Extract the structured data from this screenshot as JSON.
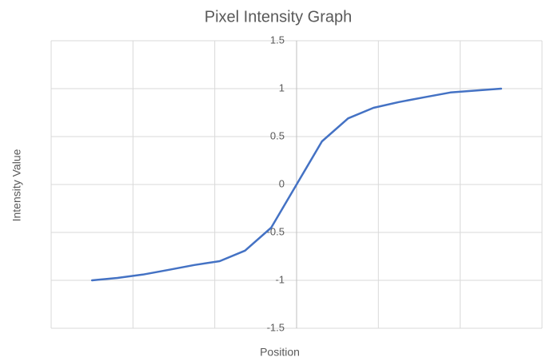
{
  "chart_data": {
    "type": "line",
    "title": "Pixel Intensity Graph",
    "x_label": "Position",
    "y_label": "Intensity Value",
    "x": [
      -2.5,
      -2.19,
      -1.88,
      -1.56,
      -1.25,
      -0.94,
      -0.63,
      -0.31,
      0,
      0.31,
      0.63,
      0.94,
      1.25,
      1.56,
      1.88,
      2.19,
      2.5
    ],
    "series": [
      {
        "name": "Intensity",
        "color": "#4472c4",
        "values": [
          -1,
          -0.975,
          -0.94,
          -0.89,
          -0.84,
          -0.8,
          -0.69,
          -0.45,
          0,
          0.45,
          0.69,
          0.8,
          0.86,
          0.91,
          0.96,
          0.98,
          1
        ]
      }
    ],
    "xlim": [
      -3,
      3
    ],
    "xticks": [
      -3,
      -2,
      -1,
      0,
      1,
      2,
      3
    ],
    "ylim": [
      -1.5,
      1.5
    ],
    "yticks": [
      -1.5,
      -1,
      -0.5,
      0,
      0.5,
      1,
      1.5
    ],
    "grid": true
  }
}
